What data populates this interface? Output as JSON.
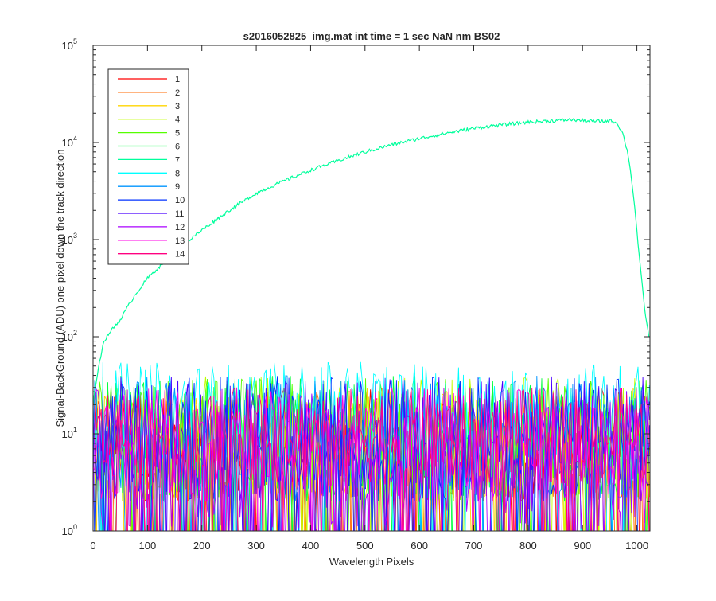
{
  "chart_data": {
    "type": "line",
    "title": "s2016052825_img.mat int time = 1 sec  NaN nm BS02",
    "xlabel": "Wavelength Pixels",
    "ylabel": "Signal-BackGround (ADU) one pixel down the track direction",
    "xlim": [
      0,
      1024
    ],
    "ylim": [
      1,
      100000
    ],
    "yscale": "log",
    "grid": false,
    "legend_position": "top-left",
    "x_ticks": [
      {
        "value": 0,
        "label": "0"
      },
      {
        "value": 100,
        "label": "100"
      },
      {
        "value": 200,
        "label": "200"
      },
      {
        "value": 300,
        "label": "300"
      },
      {
        "value": 400,
        "label": "400"
      },
      {
        "value": 500,
        "label": "500"
      },
      {
        "value": 600,
        "label": "600"
      },
      {
        "value": 700,
        "label": "700"
      },
      {
        "value": 800,
        "label": "800"
      },
      {
        "value": 900,
        "label": "900"
      },
      {
        "value": 1000,
        "label": "1000"
      }
    ],
    "y_ticks": [
      {
        "value": 1,
        "base": "10",
        "exp": "0"
      },
      {
        "value": 10,
        "base": "10",
        "exp": "1"
      },
      {
        "value": 100,
        "base": "10",
        "exp": "2"
      },
      {
        "value": 1000,
        "base": "10",
        "exp": "3"
      },
      {
        "value": 10000,
        "base": "10",
        "exp": "4"
      },
      {
        "value": 100000,
        "base": "10",
        "exp": "5"
      }
    ],
    "series": [
      {
        "name": "1",
        "color": "#ff0000",
        "noise": {
          "x_range": [
            0,
            1023
          ],
          "typical": [
            2,
            30
          ]
        }
      },
      {
        "name": "2",
        "color": "#ff6a00",
        "noise": {
          "x_range": [
            0,
            1023
          ],
          "typical": [
            2,
            30
          ]
        }
      },
      {
        "name": "3",
        "color": "#ffd400",
        "noise": {
          "x_range": [
            0,
            1023
          ],
          "typical": [
            2,
            30
          ]
        }
      },
      {
        "name": "4",
        "color": "#c0ff00",
        "noise": {
          "x_range": [
            0,
            1023
          ],
          "typical": [
            2,
            40
          ]
        }
      },
      {
        "name": "5",
        "color": "#55ff00",
        "noise": {
          "x_range": [
            0,
            1023
          ],
          "typical": [
            2,
            40
          ]
        }
      },
      {
        "name": "6",
        "color": "#00ff40",
        "noise": {
          "x_range": [
            0,
            1023
          ],
          "typical": [
            2,
            40
          ]
        }
      },
      {
        "name": "7",
        "color": "#00ff9c",
        "x": [
          0,
          10,
          20,
          30,
          50,
          75,
          100,
          150,
          200,
          250,
          300,
          350,
          400,
          450,
          500,
          550,
          600,
          650,
          700,
          750,
          800,
          850,
          880,
          900,
          930,
          955,
          965,
          975,
          985,
          995,
          1005,
          1015,
          1023
        ],
        "y": [
          20,
          50,
          90,
          110,
          150,
          260,
          400,
          750,
          1250,
          2000,
          3000,
          4000,
          5200,
          6500,
          8000,
          9500,
          11000,
          12500,
          14000,
          15200,
          16200,
          16800,
          17200,
          16800,
          16500,
          16800,
          15500,
          12000,
          7000,
          2500,
          600,
          180,
          90
        ]
      },
      {
        "name": "8",
        "color": "#00ffff",
        "noise": {
          "x_range": [
            0,
            1023
          ],
          "typical": [
            5,
            55
          ]
        }
      },
      {
        "name": "9",
        "color": "#0095ff",
        "noise": {
          "x_range": [
            0,
            1023
          ],
          "typical": [
            2,
            40
          ]
        }
      },
      {
        "name": "10",
        "color": "#0030ff",
        "noise": {
          "x_range": [
            0,
            1023
          ],
          "typical": [
            2,
            40
          ]
        }
      },
      {
        "name": "11",
        "color": "#4a00ff",
        "noise": {
          "x_range": [
            0,
            1023
          ],
          "typical": [
            2,
            40
          ]
        }
      },
      {
        "name": "12",
        "color": "#aa00ff",
        "noise": {
          "x_range": [
            0,
            1023
          ],
          "typical": [
            1,
            30
          ]
        }
      },
      {
        "name": "13",
        "color": "#ff00e5",
        "noise": {
          "x_range": [
            0,
            1023
          ],
          "typical": [
            2,
            30
          ]
        }
      },
      {
        "name": "14",
        "color": "#ff0080",
        "noise": {
          "x_range": [
            0,
            1023
          ],
          "typical": [
            3,
            30
          ]
        }
      }
    ]
  }
}
